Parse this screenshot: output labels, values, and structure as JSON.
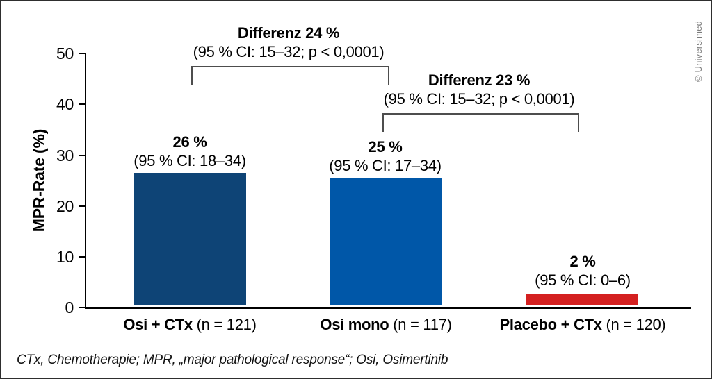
{
  "chart_data": {
    "type": "bar",
    "title": "",
    "xlabel": "",
    "ylabel": "MPR-Rate (%)",
    "ylim": [
      0,
      50
    ],
    "yticks": [
      50,
      40,
      30,
      20,
      10,
      0
    ],
    "grid": false,
    "legend": false,
    "categories_bold": [
      "Osi + CTx",
      "Osi mono",
      "Placebo + CTx"
    ],
    "categories_n": [
      "(n = 121)",
      "(n = 117)",
      "(n = 120)"
    ],
    "values": [
      26,
      25,
      2
    ],
    "bar_colors": [
      "#0e4476",
      "#0057a8",
      "#d42020"
    ],
    "value_labels": [
      "26 %",
      "25 %",
      "2 %"
    ],
    "ci_labels": [
      "(95 % CI: 18–34)",
      "(95 % CI: 17–34)",
      "(95 % CI: 0–6)"
    ],
    "comparisons": [
      {
        "label": "Differenz 24 %",
        "detail": "(95 % CI: 15–32; p < 0,0001)",
        "from": 0,
        "to": 1
      },
      {
        "label": "Differenz 23 %",
        "detail": "(95 % CI: 15–32; p < 0,0001)",
        "from": 1,
        "to": 2
      }
    ]
  },
  "footnote": "CTx, Chemotherapie; MPR, „major pathological response“; Osi, Osimertinib",
  "credit": "© Universimed"
}
